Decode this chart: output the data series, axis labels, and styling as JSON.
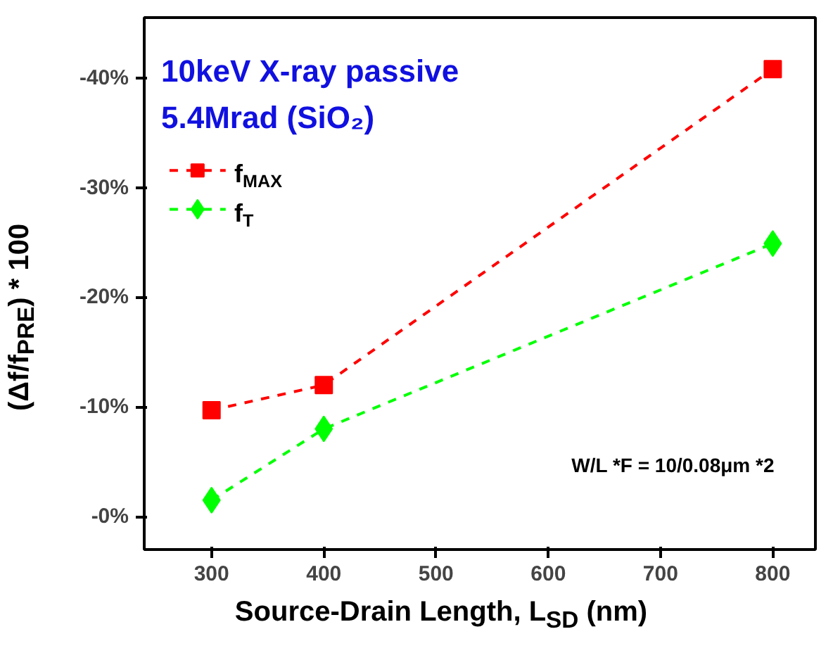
{
  "chart_data": {
    "type": "line",
    "title": "10keV X-ray passive",
    "subtitle": "5.4Mrad (SiO₂)",
    "xlabel": "Source-Drain Length, L$_{SD}$ (nm)",
    "ylabel": "(Δf/f$_{PRE}$) * 100",
    "x": [
      300,
      400,
      800
    ],
    "series": [
      {
        "name": "f$_{MAX}$",
        "color": "#ff0000",
        "values": [
          -9.7,
          -12.0,
          -40.8
        ],
        "marker": "square"
      },
      {
        "name": "f$_{T}$",
        "color": "#00ff00",
        "values": [
          -1.5,
          -8.0,
          -24.9
        ],
        "marker": "diamond"
      }
    ],
    "line_style": "dashed",
    "xlim": [
      240,
      838
    ],
    "ylim": [
      3,
      -45.5
    ],
    "xticks": [
      300,
      400,
      500,
      600,
      700,
      800
    ],
    "yticks": [
      {
        "value": 0,
        "label": "-0%"
      },
      {
        "value": -10,
        "label": "-10%"
      },
      {
        "value": -20,
        "label": "-20%"
      },
      {
        "value": -30,
        "label": "-30%"
      },
      {
        "value": -40,
        "label": "-40%"
      }
    ],
    "annotations": [
      {
        "text": "W/L *F = 10/0.08μm *2"
      }
    ],
    "grid": false,
    "legend": "top left"
  }
}
